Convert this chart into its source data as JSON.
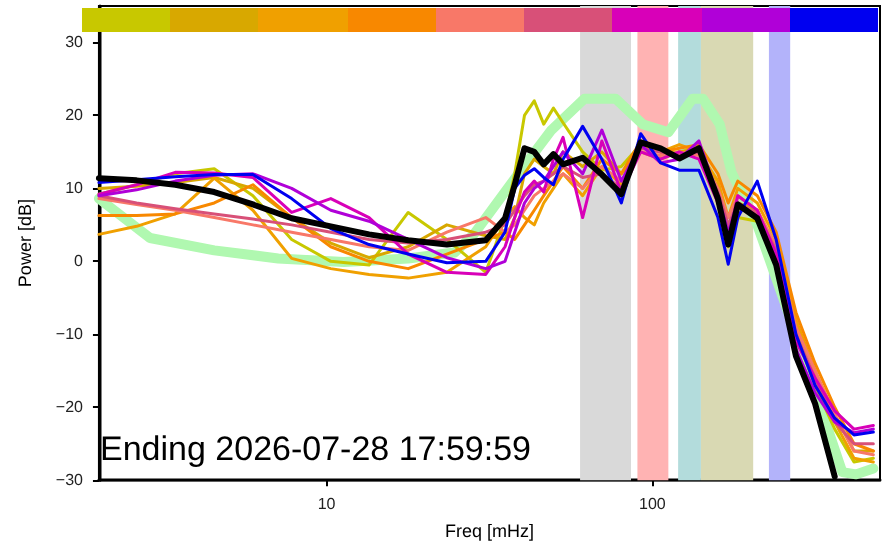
{
  "chart_data": {
    "type": "line",
    "xlabel": "Freq [mHz]",
    "ylabel": "Power [dB]",
    "log": "x",
    "xlim": [
      2,
      500
    ],
    "xticks": [
      10,
      100
    ],
    "ylim": [
      -30,
      35
    ],
    "yticks": [
      {
        "value": -30,
        "label": "−30"
      },
      {
        "value": -20,
        "label": "−20"
      },
      {
        "value": -10,
        "label": "−10"
      },
      0,
      10,
      20,
      30
    ],
    "grid": false,
    "annotations": [
      "Ending 2026-07-28 17:59:59"
    ],
    "bands": [
      {
        "axis": "x",
        "from": 60,
        "to": 86,
        "color": "#d9d9d9"
      },
      {
        "axis": "x",
        "from": 90,
        "to": 112,
        "color": "#ffb3b3"
      },
      {
        "axis": "x",
        "from": 120,
        "to": 141,
        "color": "#b3dcdc"
      },
      {
        "axis": "x",
        "from": 141,
        "to": 204,
        "color": "#d9d9b3"
      },
      {
        "axis": "x",
        "from": 228,
        "to": 265,
        "color": "#b3b3fa"
      }
    ],
    "x": [
      2,
      2.61,
      3.43,
      4.52,
      5.94,
      7.81,
      10.3,
      13.5,
      17.8,
      23.4,
      30.8,
      35.3,
      37.8,
      40.5,
      43.4,
      46.4,
      49.7,
      53.2,
      61.1,
      70,
      80.3,
      92.1,
      106,
      121,
      139,
      159,
      171,
      183,
      210,
      240,
      276,
      316,
      363,
      416,
      477
    ],
    "series": [
      {
        "color": "#c8c800",
        "values": [
          9.2,
          10.5,
          12,
          12.7,
          9,
          3,
          0,
          -0.5,
          6.7,
          3,
          -1.5,
          5.9,
          12,
          20,
          22,
          18.8,
          21,
          19,
          15,
          12.5,
          13,
          16,
          15,
          15,
          15.5,
          8,
          2,
          6,
          5.5,
          0,
          -10,
          -17,
          -23,
          -27.5,
          -27
        ]
      },
      {
        "color": "#d8a800",
        "values": [
          10,
          10.3,
          10.8,
          11.5,
          10,
          6,
          2.5,
          0.5,
          2,
          5,
          3.5,
          3,
          6,
          12,
          14,
          13,
          12,
          15,
          13,
          15,
          12,
          15,
          14,
          15,
          15.5,
          10,
          4,
          8,
          7,
          2,
          -9,
          -15,
          -21,
          -26,
          -26
        ]
      },
      {
        "color": "#f0a000",
        "values": [
          3.7,
          4.8,
          6.5,
          11.4,
          7,
          0.4,
          -1,
          -1.8,
          -2.3,
          -1.5,
          2,
          6,
          7.5,
          6,
          5,
          8,
          10,
          12,
          9,
          13,
          10.5,
          16,
          15,
          16,
          15,
          11,
          6,
          10,
          8,
          3,
          -8,
          -15,
          -22,
          -27,
          -27.5
        ]
      },
      {
        "color": "#f88800",
        "values": [
          6.3,
          6.3,
          6.5,
          8,
          10.5,
          6,
          2,
          0,
          -1,
          1,
          3,
          4,
          3,
          5,
          7,
          9,
          11,
          13,
          10,
          14,
          12,
          16.5,
          15,
          15.5,
          16,
          12,
          8,
          11,
          9,
          4,
          -7,
          -14,
          -20,
          -25,
          -26
        ]
      },
      {
        "color": "#f87868",
        "values": [
          8.6,
          7.8,
          7,
          6,
          5,
          4,
          3,
          2,
          1.5,
          4,
          6,
          4,
          5,
          7,
          9,
          10,
          11,
          12,
          10,
          13,
          11,
          15,
          14.5,
          15,
          14.5,
          10,
          6,
          9,
          7,
          2,
          -9,
          -15,
          -21,
          -26,
          -26.5
        ]
      },
      {
        "color": "#d85078",
        "values": [
          9,
          8,
          7.2,
          6.5,
          5.8,
          5,
          4,
          3,
          2.5,
          3,
          4,
          5,
          7,
          9,
          10.5,
          11,
          12,
          13,
          11.5,
          12,
          10,
          15.5,
          15,
          14.5,
          15,
          9.5,
          5,
          8,
          6.5,
          1.5,
          -10,
          -16,
          -22,
          -25,
          -25
        ]
      },
      {
        "color": "#d800b8",
        "values": [
          9.2,
          10.5,
          12.2,
          12.1,
          11.5,
          6.7,
          8.6,
          6,
          1,
          -1.5,
          -1.8,
          2,
          6,
          9.5,
          11,
          9.5,
          14,
          17,
          6,
          16.5,
          9.5,
          15,
          14,
          15,
          14,
          8,
          3,
          9,
          7,
          1,
          -11,
          -16,
          -20.5,
          -23,
          -22.5
        ]
      },
      {
        "color": "#b000d8",
        "values": [
          9,
          9.8,
          11,
          11.8,
          12,
          10,
          7,
          5.5,
          3,
          0.5,
          -1,
          0,
          4,
          8,
          10,
          11,
          13,
          15,
          12,
          18,
          11,
          16,
          13.5,
          14,
          16.5,
          9,
          4,
          8,
          6,
          0,
          -12,
          -18,
          -22,
          -23.5,
          -23
        ]
      },
      {
        "color": "#0000f0",
        "values": [
          10.8,
          11.2,
          11.6,
          11.9,
          11.9,
          8.6,
          4.5,
          2.3,
          1,
          -0.2,
          0,
          4,
          10,
          11.8,
          12.7,
          11.5,
          10.5,
          14,
          18.5,
          14,
          8,
          17.5,
          13.5,
          12.5,
          12.5,
          6,
          -0.4,
          6,
          11,
          3,
          -10,
          -17,
          -21.5,
          -23.8,
          -23.4
        ]
      },
      {
        "color": "#b0f8b0",
        "x": [
          2,
          2.87,
          4.52,
          7.1,
          11.3,
          17.8,
          24.7,
          28.3,
          38.8,
          49,
          61.9,
          77.1,
          93.4,
          112,
          133,
          143,
          161,
          175,
          210,
          276,
          383,
          422,
          477
        ],
        "values": [
          8.6,
          3.2,
          1.5,
          0.4,
          -0.1,
          0.4,
          1.2,
          3.7,
          12,
          18,
          22.3,
          22.3,
          18.8,
          17.7,
          22.3,
          22.3,
          18.8,
          12.2,
          5,
          -10,
          -28.9,
          -29.2,
          -28.4
        ]
      },
      {
        "color": "#000000",
        "values": [
          11.4,
          11.1,
          10.5,
          9.5,
          7.8,
          5.9,
          4.8,
          3.7,
          2.9,
          2.3,
          2.9,
          5.9,
          10.5,
          15.5,
          15,
          13.3,
          14.7,
          13.3,
          14.2,
          11.9,
          9.2,
          16.3,
          15.5,
          14.1,
          15.5,
          8.6,
          2.3,
          7.8,
          5.9,
          -0.5,
          -13,
          -19.5,
          -29.5,
          null,
          null
        ]
      }
    ]
  }
}
